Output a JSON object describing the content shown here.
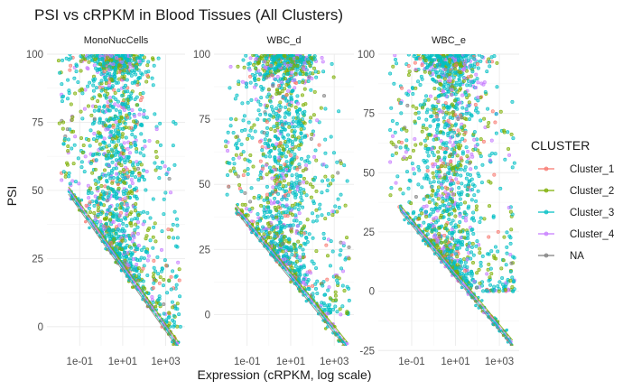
{
  "chart_data": {
    "type": "scatter",
    "title": "PSI vs cRPKM in Blood Tissues (All Clusters)",
    "xlabel": "Expression (cRPKM, log scale)",
    "ylabel": "PSI",
    "x_scale": "log10",
    "x_tick_labels": [
      "1e-01",
      "1e+01",
      "1e+03"
    ],
    "x_tick_values": [
      0.1,
      10,
      1000
    ],
    "legend": {
      "title": "CLUSTER",
      "placement": "right",
      "entries": [
        {
          "name": "Cluster_1",
          "color": "#F8766D"
        },
        {
          "name": "Cluster_2",
          "color": "#7CAE00"
        },
        {
          "name": "Cluster_3",
          "color": "#00BFC4"
        },
        {
          "name": "Cluster_4",
          "color": "#C77CFF"
        },
        {
          "name": "NA",
          "color": "#7F7F7F"
        }
      ]
    },
    "panels": [
      {
        "name": "MonoNucCells",
        "xlim": [
          0.003,
          8000
        ],
        "ylim": [
          -7,
          100
        ],
        "y_ticks": [
          0,
          25,
          50,
          75,
          100
        ],
        "diagonal": {
          "x_start": 0.03,
          "y_start": 50,
          "x_end": 4000,
          "y_end": -7
        }
      },
      {
        "name": "WBC_d",
        "xlim": [
          0.003,
          8000
        ],
        "ylim": [
          -12,
          100
        ],
        "y_ticks": [
          0,
          25,
          50,
          75,
          100
        ],
        "diagonal": {
          "x_start": 0.03,
          "y_start": 41,
          "x_end": 4000,
          "y_end": -12
        }
      },
      {
        "name": "WBC_e",
        "xlim": [
          0.003,
          8000
        ],
        "ylim": [
          -23,
          100
        ],
        "y_ticks": [
          -25,
          0,
          25,
          50,
          75,
          100
        ],
        "diagonal": {
          "x_start": 0.03,
          "y_start": 35,
          "x_end": 4000,
          "y_end": -22
        }
      }
    ]
  }
}
